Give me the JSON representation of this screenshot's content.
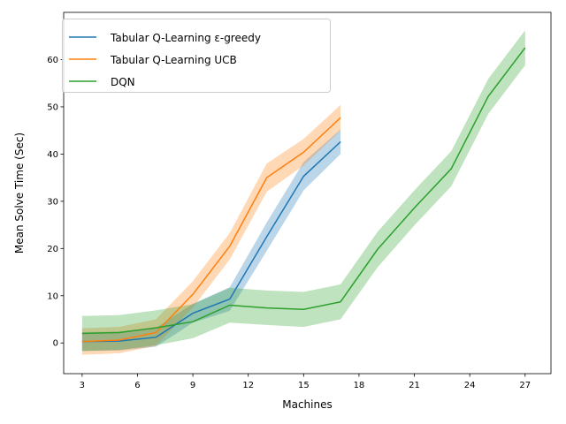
{
  "chart_data": {
    "type": "line",
    "xlabel": "Machines",
    "ylabel": "Mean Solve Time (Sec)",
    "xlim": [
      2,
      28.4
    ],
    "ylim": [
      -6.5,
      70
    ],
    "xticks": [
      3,
      6,
      9,
      12,
      15,
      18,
      21,
      24,
      27
    ],
    "yticks": [
      0,
      10,
      20,
      30,
      40,
      50,
      60
    ],
    "grid": false,
    "legend_position": "top-left",
    "series": [
      {
        "name": "Tabular Q-Learning ε-greedy",
        "color": "#1f77b4",
        "x": [
          3,
          5,
          7,
          9,
          11,
          13,
          15,
          17
        ],
        "y": [
          0.3,
          0.4,
          1.2,
          6.3,
          9.3,
          22.5,
          35.3,
          42.6
        ],
        "lower": [
          -1.7,
          -1.6,
          -0.8,
          4.3,
          6.8,
          19.5,
          32.3,
          40.0
        ],
        "upper": [
          2.3,
          2.4,
          3.2,
          8.3,
          11.8,
          25.5,
          38.3,
          45.2
        ]
      },
      {
        "name": "Tabular Q-Learning UCB",
        "color": "#ff7f0e",
        "x": [
          3,
          5,
          7,
          9,
          11,
          13,
          15,
          17
        ],
        "y": [
          0.3,
          0.6,
          2.2,
          10.3,
          20.5,
          35.0,
          40.4,
          47.7
        ],
        "lower": [
          -2.5,
          -2.2,
          -0.6,
          7.5,
          17.7,
          32.0,
          37.6,
          45.0
        ],
        "upper": [
          3.1,
          3.4,
          5.0,
          13.1,
          23.3,
          38.0,
          43.2,
          50.4
        ]
      },
      {
        "name": "DQN",
        "color": "#2ca02c",
        "x": [
          3,
          5,
          7,
          9,
          11,
          13,
          15,
          17,
          19,
          21,
          23,
          25,
          27
        ],
        "y": [
          2.0,
          2.2,
          3.2,
          4.5,
          8.0,
          7.4,
          7.1,
          8.7,
          19.8,
          28.6,
          36.9,
          52.2,
          62.5
        ],
        "lower": [
          -1.7,
          -1.5,
          -0.5,
          1.0,
          4.3,
          3.8,
          3.4,
          5.0,
          16.0,
          24.9,
          33.2,
          48.5,
          58.8
        ],
        "upper": [
          5.7,
          5.9,
          6.9,
          8.2,
          11.7,
          11.1,
          10.8,
          12.4,
          23.5,
          32.3,
          40.6,
          55.9,
          66.2
        ]
      }
    ]
  }
}
